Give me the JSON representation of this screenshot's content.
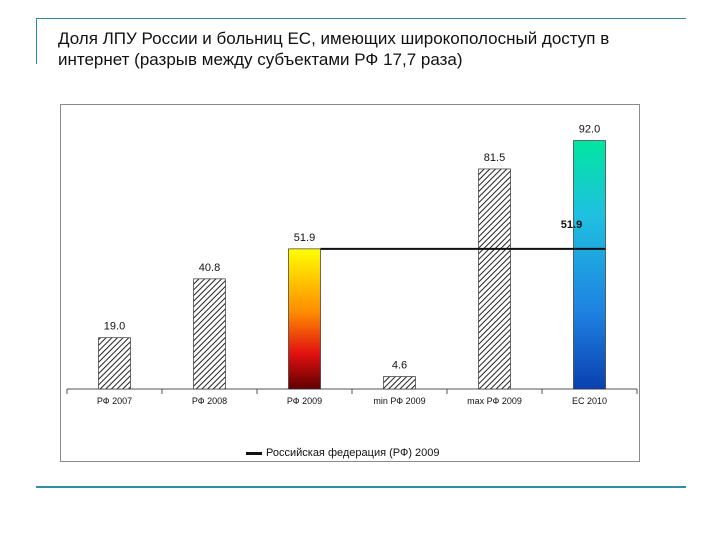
{
  "slide": {
    "title": "Доля ЛПУ России и больниц ЕС, имеющих широкополосный доступ в интернет (разрыв между субъектами РФ 17,7 раза)"
  },
  "chart_data": {
    "type": "bar",
    "title": "",
    "categories": [
      "РФ 2007",
      "РФ 2008",
      "РФ 2009",
      "min РФ 2009",
      "max РФ 2009",
      "ЕС 2010"
    ],
    "values": [
      19.0,
      40.8,
      51.9,
      4.6,
      81.5,
      92.0
    ],
    "value_labels": [
      "19.0",
      "40.8",
      "51.9",
      "4.6",
      "81.5",
      "92.0"
    ],
    "fills": [
      "hatch",
      "hatch",
      "gradient-yellow-red",
      "hatch",
      "hatch",
      "gradient-cyan-blue"
    ],
    "ylim": [
      0,
      100
    ],
    "xlabel": "",
    "ylabel": "",
    "grid": false,
    "reference_line": {
      "name": "Российская федерация (РФ) 2009",
      "value": 51.9,
      "label": "51.9",
      "from_category": 2,
      "to_category": 5
    },
    "legend": {
      "position": "bottom",
      "entries": [
        "Российская федерация (РФ) 2009"
      ]
    }
  }
}
